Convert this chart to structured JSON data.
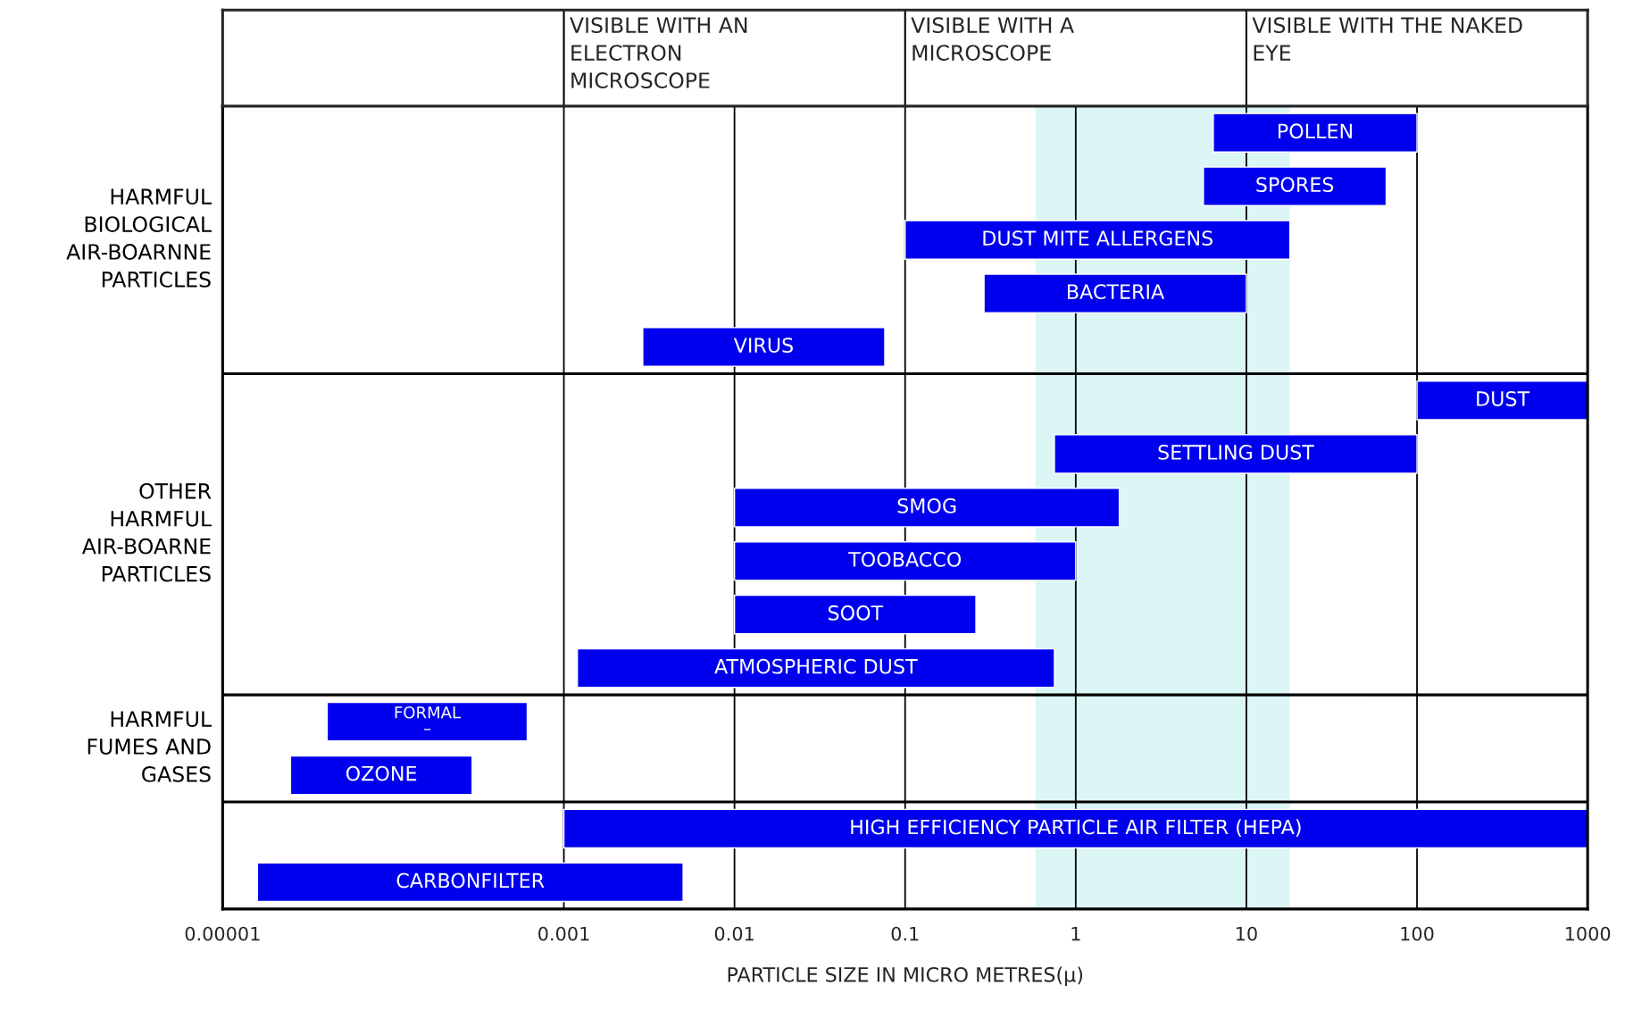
{
  "chart_data": {
    "type": "bar",
    "orientation": "horizontal",
    "log": "x",
    "grid": "x",
    "xlabel": "PARTICLE SIZE IN MICRO METRES(μ)",
    "annotations": [
      "HARMFUL\nBIOLOGICAL\nAIR-BOARNNE\nPARTICLES",
      "OTHER\nHARMFUL\nAIR-BOARNE\nPARTICLES",
      "HARMFUL\nFUMES AND\nGASES",
      "VISIBLE WITH AN\nELECTRON\nMICROSCOPE",
      "VISIBLE WITH A\nMICROSCOPE",
      "VISIBLE WITH THE NAKED\nEYE"
    ],
    "categories": [
      null,
      null,
      null,
      null,
      null,
      null,
      null,
      null,
      null,
      null,
      null,
      null,
      null,
      null,
      null
    ],
    "series": [
      {
        "color": "#0000ee",
        "base": [
          6.4,
          5.6,
          0.1,
          0.29,
          0.0029,
          null,
          null,
          null,
          null,
          null,
          null,
          null,
          null,
          null,
          null
        ],
        "values": [
          93.6,
          60.4,
          17.9,
          9.71,
          0.0731,
          null,
          null,
          null,
          null,
          null,
          null,
          null,
          null,
          null,
          null
        ],
        "value_labels": [
          "POLLEN",
          "SPORES",
          "DUST MITE ALLERGENS",
          "BACTERIA",
          "VIRUS",
          null,
          null,
          null,
          null,
          null,
          null,
          null,
          null,
          null,
          null
        ]
      },
      {
        "color": "#0000ee",
        "base": [
          null,
          null,
          null,
          null,
          null,
          100,
          0.75,
          0.01,
          0.01,
          0.01,
          0.0012,
          null,
          null,
          null,
          null
        ],
        "values": [
          null,
          null,
          null,
          null,
          null,
          900,
          99.25,
          1.79,
          0.99,
          0.25,
          0.7488,
          null,
          null,
          null,
          null
        ],
        "value_labels": [
          null,
          null,
          null,
          null,
          null,
          "DUST",
          "SETTLING DUST",
          "SMOG",
          "TOOBACCO",
          "SOOT",
          "ATMOSPHERIC DUST",
          null,
          null,
          null,
          null
        ]
      },
      {
        "color": "#0000ee",
        "base": [
          null,
          null,
          null,
          null,
          null,
          null,
          null,
          null,
          null,
          null,
          null,
          4.1e-05,
          2.5e-05,
          null,
          null
        ],
        "values": [
          null,
          null,
          null,
          null,
          null,
          null,
          null,
          null,
          null,
          null,
          null,
          0.000569,
          0.000265,
          null,
          null
        ],
        "value_labels": [
          null,
          null,
          null,
          null,
          null,
          null,
          null,
          null,
          null,
          null,
          null,
          "FORMAL\n–",
          "OZONE",
          null,
          null
        ]
      },
      {
        "color": "#0000ee",
        "base": [
          null,
          null,
          null,
          null,
          null,
          null,
          null,
          null,
          null,
          null,
          null,
          null,
          null,
          0.001,
          1.6e-05
        ],
        "values": [
          null,
          null,
          null,
          null,
          null,
          null,
          null,
          null,
          null,
          null,
          null,
          null,
          null,
          999.999,
          0.004984
        ],
        "value_labels": [
          null,
          null,
          null,
          null,
          null,
          null,
          null,
          null,
          null,
          null,
          null,
          null,
          null,
          "HIGH EFFICIENCY PARTICLE AIR FILTER (HEPA)",
          "CARBONFILTER"
        ]
      }
    ],
    "xlim": [
      1e-05,
      1000
    ],
    "xticks": [
      {
        "value": 1e-05,
        "label": "0.00001"
      },
      0.001,
      0.01,
      0.1,
      1,
      10,
      100,
      1000
    ],
    "bands": [
      {
        "axis": "x",
        "from": 0.58,
        "to": 18,
        "color": "#dcf6f6"
      }
    ]
  }
}
